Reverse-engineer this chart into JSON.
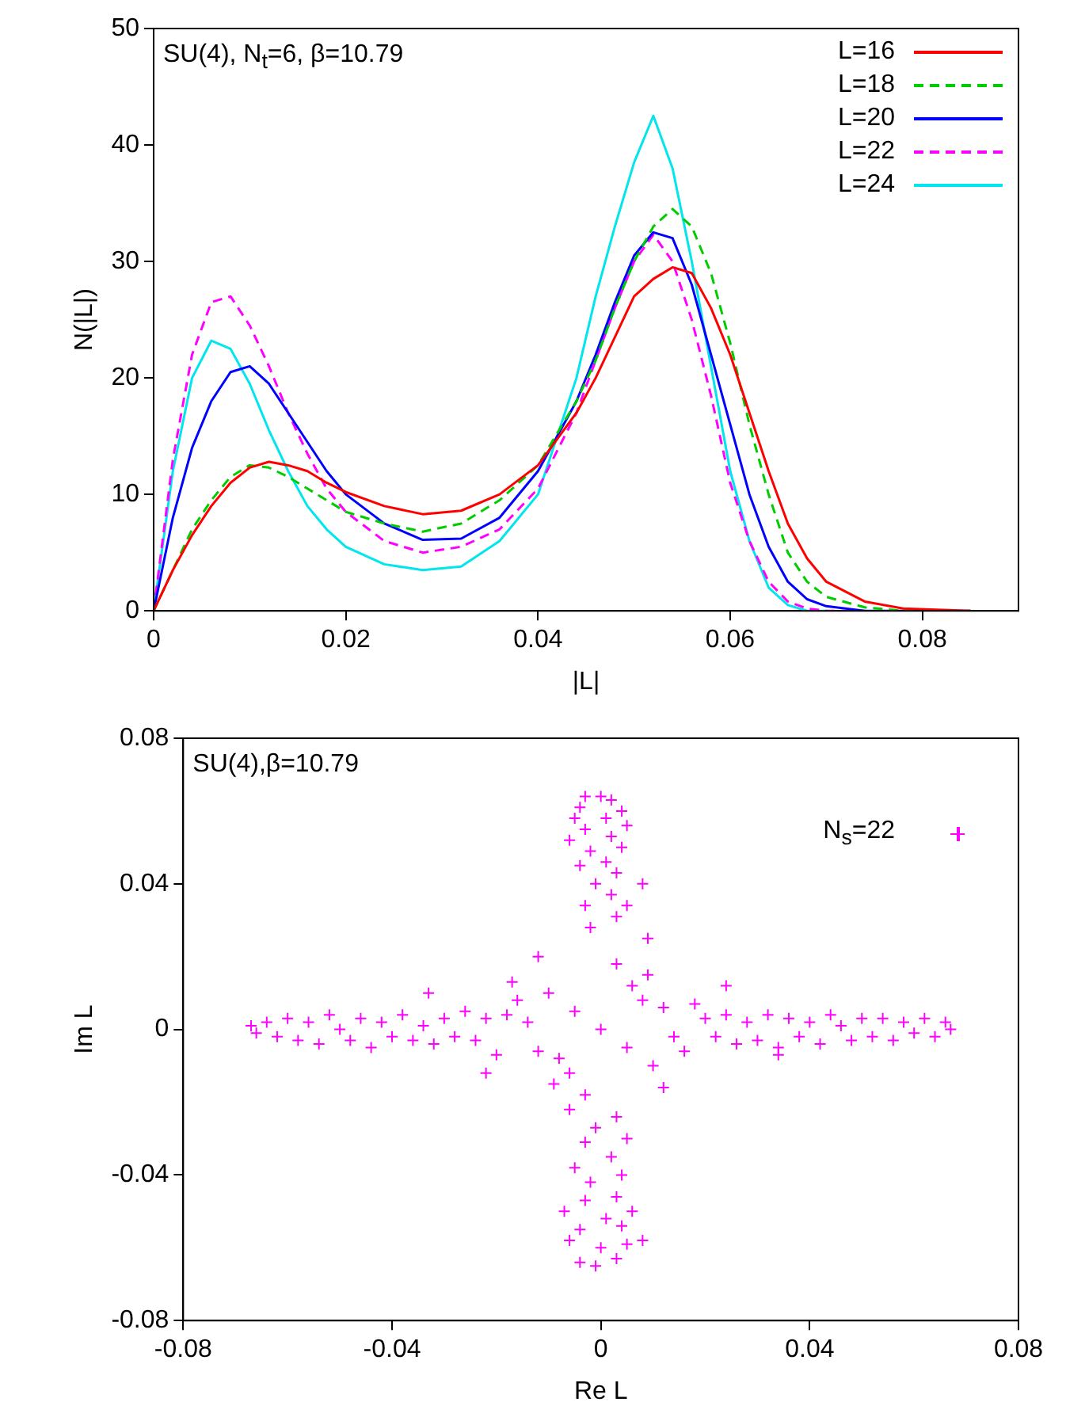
{
  "chart_data": [
    {
      "type": "line",
      "xlabel": "|L|",
      "ylabel": "N(|L|)",
      "annotations": [
        "SU(4), N$_{t}$=6, β=10.79"
      ],
      "xlim": [
        0,
        0.09
      ],
      "xticks": [
        0,
        0.02,
        0.04,
        0.06,
        0.08
      ],
      "ylim": [
        0,
        50
      ],
      "yticks": [
        0,
        10,
        20,
        30,
        40,
        50
      ],
      "grid": false,
      "legend": "top right",
      "marker": "none",
      "x": [
        0,
        0.002,
        0.004,
        0.006,
        0.008,
        0.01,
        0.012,
        0.014,
        0.016,
        0.018,
        0.02,
        0.024,
        0.028,
        0.032,
        0.036,
        0.04,
        0.044,
        0.046,
        0.048,
        0.05,
        0.052,
        0.054,
        0.056,
        0.058,
        0.06,
        0.062,
        0.064,
        0.066,
        0.068,
        0.07,
        0.074,
        0.078,
        0.085
      ],
      "series": [
        {
          "name": "L=16",
          "color": "#ff0000",
          "line_style": "solid",
          "values": [
            0,
            3.5,
            6.5,
            9,
            11,
            12.3,
            12.8,
            12.5,
            12,
            11,
            10.2,
            9,
            8.3,
            8.6,
            10,
            12.5,
            17,
            20,
            23.5,
            27,
            28.5,
            29.5,
            29,
            26,
            22,
            17,
            12,
            7.5,
            4.5,
            2.5,
            0.8,
            0.2,
            0
          ]
        },
        {
          "name": "L=18",
          "color": "#00cc00",
          "line_style": "dashed",
          "values": [
            0,
            3.5,
            7,
            9.5,
            11.5,
            12.5,
            12.3,
            11.5,
            10.5,
            9.5,
            8.5,
            7.5,
            6.8,
            7.5,
            9.5,
            12.5,
            18,
            21.5,
            26,
            30,
            33,
            34.5,
            33,
            29,
            23,
            16,
            10,
            5,
            2.5,
            1.2,
            0.3,
            0,
            0
          ]
        },
        {
          "name": "L=20",
          "color": "#0000ff",
          "line_style": "solid",
          "values": [
            0,
            8,
            14,
            18,
            20.5,
            21,
            19.5,
            17,
            14.5,
            12,
            10,
            7.5,
            6.1,
            6.2,
            8,
            12,
            18,
            22,
            26.5,
            30.5,
            32.5,
            32,
            28,
            22,
            16,
            10,
            5.5,
            2.5,
            1,
            0.4,
            0,
            0,
            0
          ]
        },
        {
          "name": "L=22",
          "color": "#ff00ff",
          "line_style": "dashed",
          "values": [
            0,
            13,
            22,
            26.5,
            27,
            24.5,
            21,
            17,
            13.5,
            10.5,
            8.5,
            6,
            5,
            5.5,
            7,
            10.5,
            17,
            21.5,
            26,
            30,
            32.3,
            30,
            25,
            18.5,
            11,
            6,
            2.5,
            0.8,
            0.2,
            0,
            0,
            null,
            null
          ]
        },
        {
          "name": "L=24",
          "color": "#00e5ee",
          "line_style": "solid",
          "values": [
            0,
            12,
            20,
            23.2,
            22.5,
            19.5,
            15.5,
            12,
            9,
            7,
            5.5,
            4,
            3.5,
            3.8,
            6,
            10,
            20,
            27,
            33,
            38.5,
            42.5,
            38,
            30,
            21,
            12,
            6,
            2,
            0.5,
            0,
            0,
            null,
            null,
            null
          ]
        }
      ]
    },
    {
      "type": "scatter",
      "xlabel": "Re L",
      "ylabel": "Im L",
      "annotations": [
        "SU(4),β=10.79"
      ],
      "xlim": [
        -0.08,
        0.08
      ],
      "xticks": [
        -0.08,
        -0.04,
        0,
        0.04,
        0.08
      ],
      "ylim": [
        -0.08,
        0.08
      ],
      "yticks": [
        -0.08,
        -0.04,
        0,
        0.04,
        0.08
      ],
      "grid": false,
      "legend": "top right",
      "marker": "cross",
      "series": [
        {
          "name": "N$_{s}$=22",
          "color": "#ff00ff",
          "x": [
            -0.067,
            -0.066,
            -0.064,
            -0.062,
            -0.06,
            -0.058,
            -0.056,
            -0.054,
            -0.052,
            -0.05,
            -0.048,
            -0.046,
            -0.044,
            -0.042,
            -0.04,
            -0.038,
            -0.036,
            -0.034,
            -0.032,
            -0.03,
            -0.028,
            -0.026,
            -0.024,
            -0.022,
            -0.02,
            -0.018,
            -0.016,
            0.067,
            0.066,
            0.064,
            0.062,
            0.06,
            0.058,
            0.056,
            0.054,
            0.052,
            0.05,
            0.048,
            0.046,
            0.044,
            0.042,
            0.04,
            0.038,
            0.036,
            0.034,
            0.032,
            0.03,
            0.028,
            0.026,
            0.024,
            0.022,
            0.02,
            0.018,
            0.016,
            -0.003,
            0,
            0.002,
            -0.004,
            0.004,
            -0.005,
            0.001,
            0.005,
            -0.003,
            0.002,
            -0.006,
            0.004,
            -0.002,
            0.001,
            -0.004,
            0.003,
            0.008,
            -0.001,
            0.002,
            0.005,
            -0.003,
            0.003,
            0.009,
            -0.002,
            -0.004,
            0.003,
            -0.001,
            -0.006,
            0.005,
            0,
            -0.004,
            0.004,
            -0.007,
            0.001,
            0.006,
            -0.003,
            0.003,
            0.008,
            -0.002,
            0.004,
            -0.005,
            0.002,
            -0.003,
            0.005,
            -0.001,
            0.003,
            -0.006,
            0,
            -0.005,
            0.005,
            0.008,
            -0.008,
            -0.01,
            0.01,
            0.012,
            -0.012,
            0.006,
            -0.006,
            0.014,
            -0.014,
            0.003,
            -0.003,
            0.009,
            -0.009,
            -0.017,
            0.024,
            -0.022,
            -0.033,
            0.034,
            -0.012,
            0.012
          ],
          "values": [
            0.001,
            -0.001,
            0.002,
            -0.002,
            0.003,
            -0.003,
            0.002,
            -0.004,
            0.004,
            0,
            -0.003,
            0.003,
            -0.005,
            0.002,
            -0.002,
            0.004,
            -0.003,
            0.001,
            -0.004,
            0.003,
            -0.002,
            0.005,
            -0.003,
            0.003,
            -0.007,
            0.004,
            0.008,
            0,
            0.002,
            -0.002,
            0.003,
            -0.001,
            0.002,
            -0.003,
            0.003,
            -0.002,
            0.003,
            -0.003,
            0.001,
            0.004,
            -0.004,
            0.002,
            -0.002,
            0.003,
            -0.005,
            0.004,
            -0.003,
            0.002,
            -0.004,
            0.004,
            -0.002,
            0.003,
            0.007,
            -0.006,
            0.064,
            0.064,
            0.063,
            0.061,
            0.06,
            0.058,
            0.058,
            0.056,
            0.055,
            0.053,
            0.052,
            0.05,
            0.049,
            0.046,
            0.045,
            0.043,
            0.04,
            0.04,
            0.037,
            0.034,
            0.034,
            0.031,
            0.025,
            0.028,
            -0.064,
            -0.063,
            -0.065,
            -0.058,
            -0.059,
            -0.06,
            -0.055,
            -0.054,
            -0.05,
            -0.052,
            -0.05,
            -0.047,
            -0.046,
            -0.058,
            -0.042,
            -0.04,
            -0.038,
            -0.035,
            -0.031,
            -0.03,
            -0.027,
            -0.024,
            -0.022,
            0,
            0.005,
            -0.005,
            0.008,
            -0.008,
            0.01,
            -0.01,
            0.006,
            -0.006,
            0.012,
            -0.012,
            -0.002,
            0.002,
            0.018,
            -0.018,
            0.015,
            -0.015,
            0.013,
            0.012,
            -0.012,
            0.01,
            -0.007,
            0.02,
            -0.016
          ]
        }
      ]
    }
  ]
}
